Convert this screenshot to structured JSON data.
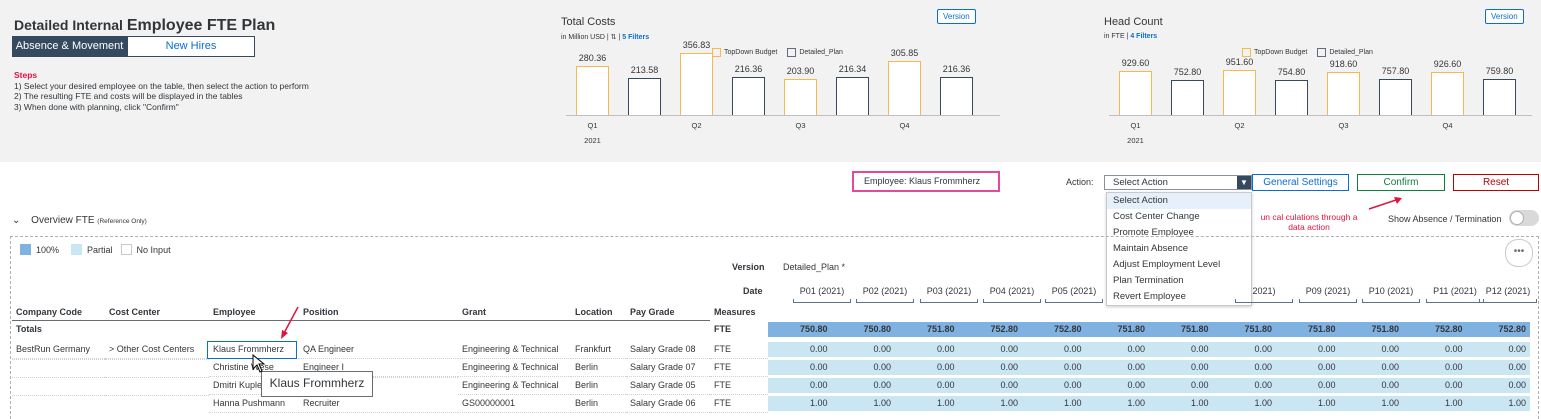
{
  "header": {
    "title_prefix": "Detailed Internal",
    "title_main": "Employee FTE Plan",
    "segments": [
      "Absence & Movement",
      "New Hires"
    ],
    "steps_heading": "Steps",
    "steps": [
      "1) Select your desired employee on the table, then select the action to perform",
      "2) The resulting FTE and costs will be displayed in the tables",
      "3) When done with planning, click \"Confirm\""
    ]
  },
  "cost_chart_header": {
    "title": "Total Costs",
    "sub_prefix": "in Million USD |",
    "filters": "5 Filters",
    "version_btn": "Version",
    "legend": [
      "TopDown Budget",
      "Detailed_Plan"
    ]
  },
  "head_chart_header": {
    "title": "Head Count",
    "sub_prefix": "in FTE |",
    "filters": "4 Filters",
    "version_btn": "Version",
    "legend": [
      "TopDown Budget",
      "Detailed_Plan"
    ]
  },
  "chart_data": [
    {
      "type": "bar",
      "title": "Total Costs",
      "categories": [
        "Q1",
        "Q2",
        "Q3",
        "Q4"
      ],
      "year": "2021",
      "series": [
        {
          "name": "TopDown Budget",
          "values": [
            280.36,
            356.83,
            203.9,
            305.85
          ],
          "labels": [
            "280.36",
            "356.83",
            "203.90",
            "305.85"
          ]
        },
        {
          "name": "Detailed_Plan",
          "values": [
            213.58,
            216.36,
            216.34,
            216.36
          ],
          "labels": [
            "213.58",
            "216.36",
            "216.34",
            "216.36"
          ]
        }
      ],
      "ylim": [
        0,
        360
      ],
      "colors": {
        "TopDown Budget": "#f7b84c",
        "Detailed_Plan": "#354a5f"
      }
    },
    {
      "type": "bar",
      "title": "Head Count",
      "categories": [
        "Q1",
        "Q2",
        "Q3",
        "Q4"
      ],
      "year": "2021",
      "series": [
        {
          "name": "TopDown Budget",
          "values": [
            929.6,
            951.6,
            918.6,
            926.6
          ],
          "labels": [
            "929.60",
            "951.60",
            "918.60",
            "926.60"
          ]
        },
        {
          "name": "Detailed_Plan",
          "values": [
            752.8,
            754.8,
            757.8,
            759.8
          ],
          "labels": [
            "752.80",
            "754.80",
            "757.80",
            "759.80"
          ]
        }
      ],
      "ylim": [
        0,
        960
      ],
      "colors": {
        "TopDown Budget": "#f7b84c",
        "Detailed_Plan": "#354a5f"
      }
    }
  ],
  "controls": {
    "employee_label": "Employee:",
    "employee_value": "Klaus Frommherz",
    "action_label": "Action:",
    "action_value": "Select Action",
    "action_options": [
      "Select Action",
      "Cost Center Change",
      "Promote Employee",
      "Maintain Absence",
      "Adjust Employment Level",
      "Plan Termination",
      "Revert Employee"
    ],
    "general_settings": "General Settings",
    "confirm": "Confirm",
    "reset": "Reset",
    "run_note_1": "un cal culations through a",
    "run_note_2": "data action",
    "toggle_label": "Show Absence / Termination"
  },
  "overview": {
    "title": "Overview FTE",
    "note": "(Reference Only)",
    "legend": [
      "100%",
      "Partial",
      "No Input"
    ],
    "colors": {
      "full": "#7fb2e0",
      "partial": "#c9e6f2",
      "none": "#ffffff"
    }
  },
  "table": {
    "version_label": "Version",
    "version_value": "Detailed_Plan *",
    "date_label": "Date",
    "measures_label": "Measures",
    "dim_headers": [
      "Company Code",
      "Cost Center",
      "Employee",
      "Position",
      "Grant",
      "Location",
      "Pay Grade"
    ],
    "periods": [
      "P01 (2021)",
      "P02 (2021)",
      "P03 (2021)",
      "P04 (2021)",
      "P05 (2021)",
      "P06 (2021)",
      "P07 (2021)",
      "P08 (2021)",
      "P09 (2021)",
      "P10 (2021)",
      "P11 (2021)",
      "P12 (2021)"
    ],
    "period_08_visible": "2021)",
    "totals": {
      "label": "Totals",
      "measure": "FTE",
      "values": [
        "750.80",
        "750.80",
        "751.80",
        "752.80",
        "752.80",
        "751.80",
        "751.80",
        "751.80",
        "751.80",
        "751.80",
        "752.80",
        "752.80"
      ]
    },
    "rows": [
      {
        "company": "BestRun Germany",
        "cost_center": "> Other Cost Centers",
        "employee": "Klaus Frommherz",
        "position": "QA Engineer",
        "grant": "Engineering & Technical",
        "location": "Frankfurt",
        "pay_grade": "Salary Grade 08",
        "measure": "FTE",
        "values": [
          "0.00",
          "0.00",
          "0.00",
          "0.00",
          "0.00",
          "0.00",
          "0.00",
          "0.00",
          "0.00",
          "0.00",
          "0.00",
          "0.00"
        ]
      },
      {
        "company": "",
        "cost_center": "",
        "employee": "Christine Wese",
        "position": "Engineer I",
        "grant": "Engineering & Technical",
        "location": "Berlin",
        "pay_grade": "Salary Grade 07",
        "measure": "FTE",
        "values": [
          "0.00",
          "0.00",
          "0.00",
          "0.00",
          "0.00",
          "0.00",
          "0.00",
          "0.00",
          "0.00",
          "0.00",
          "0.00",
          "0.00"
        ]
      },
      {
        "company": "",
        "cost_center": "",
        "employee": "Dmitri Kupler",
        "position": "",
        "grant": "Engineering & Technical",
        "location": "Berlin",
        "pay_grade": "Salary Grade 05",
        "measure": "FTE",
        "values": [
          "0.00",
          "0.00",
          "0.00",
          "0.00",
          "0.00",
          "0.00",
          "0.00",
          "0.00",
          "0.00",
          "0.00",
          "0.00",
          "0.00"
        ]
      },
      {
        "company": "",
        "cost_center": "",
        "employee": "Hanna Pushmann",
        "position": "Recruiter",
        "grant": "GS00000001",
        "location": "Berlin",
        "pay_grade": "Salary Grade 06",
        "measure": "FTE",
        "values": [
          "1.00",
          "1.00",
          "1.00",
          "1.00",
          "1.00",
          "1.00",
          "1.00",
          "1.00",
          "1.00",
          "1.00",
          "1.00",
          "1.00"
        ]
      }
    ],
    "tooltip": "Klaus Frommherz"
  }
}
